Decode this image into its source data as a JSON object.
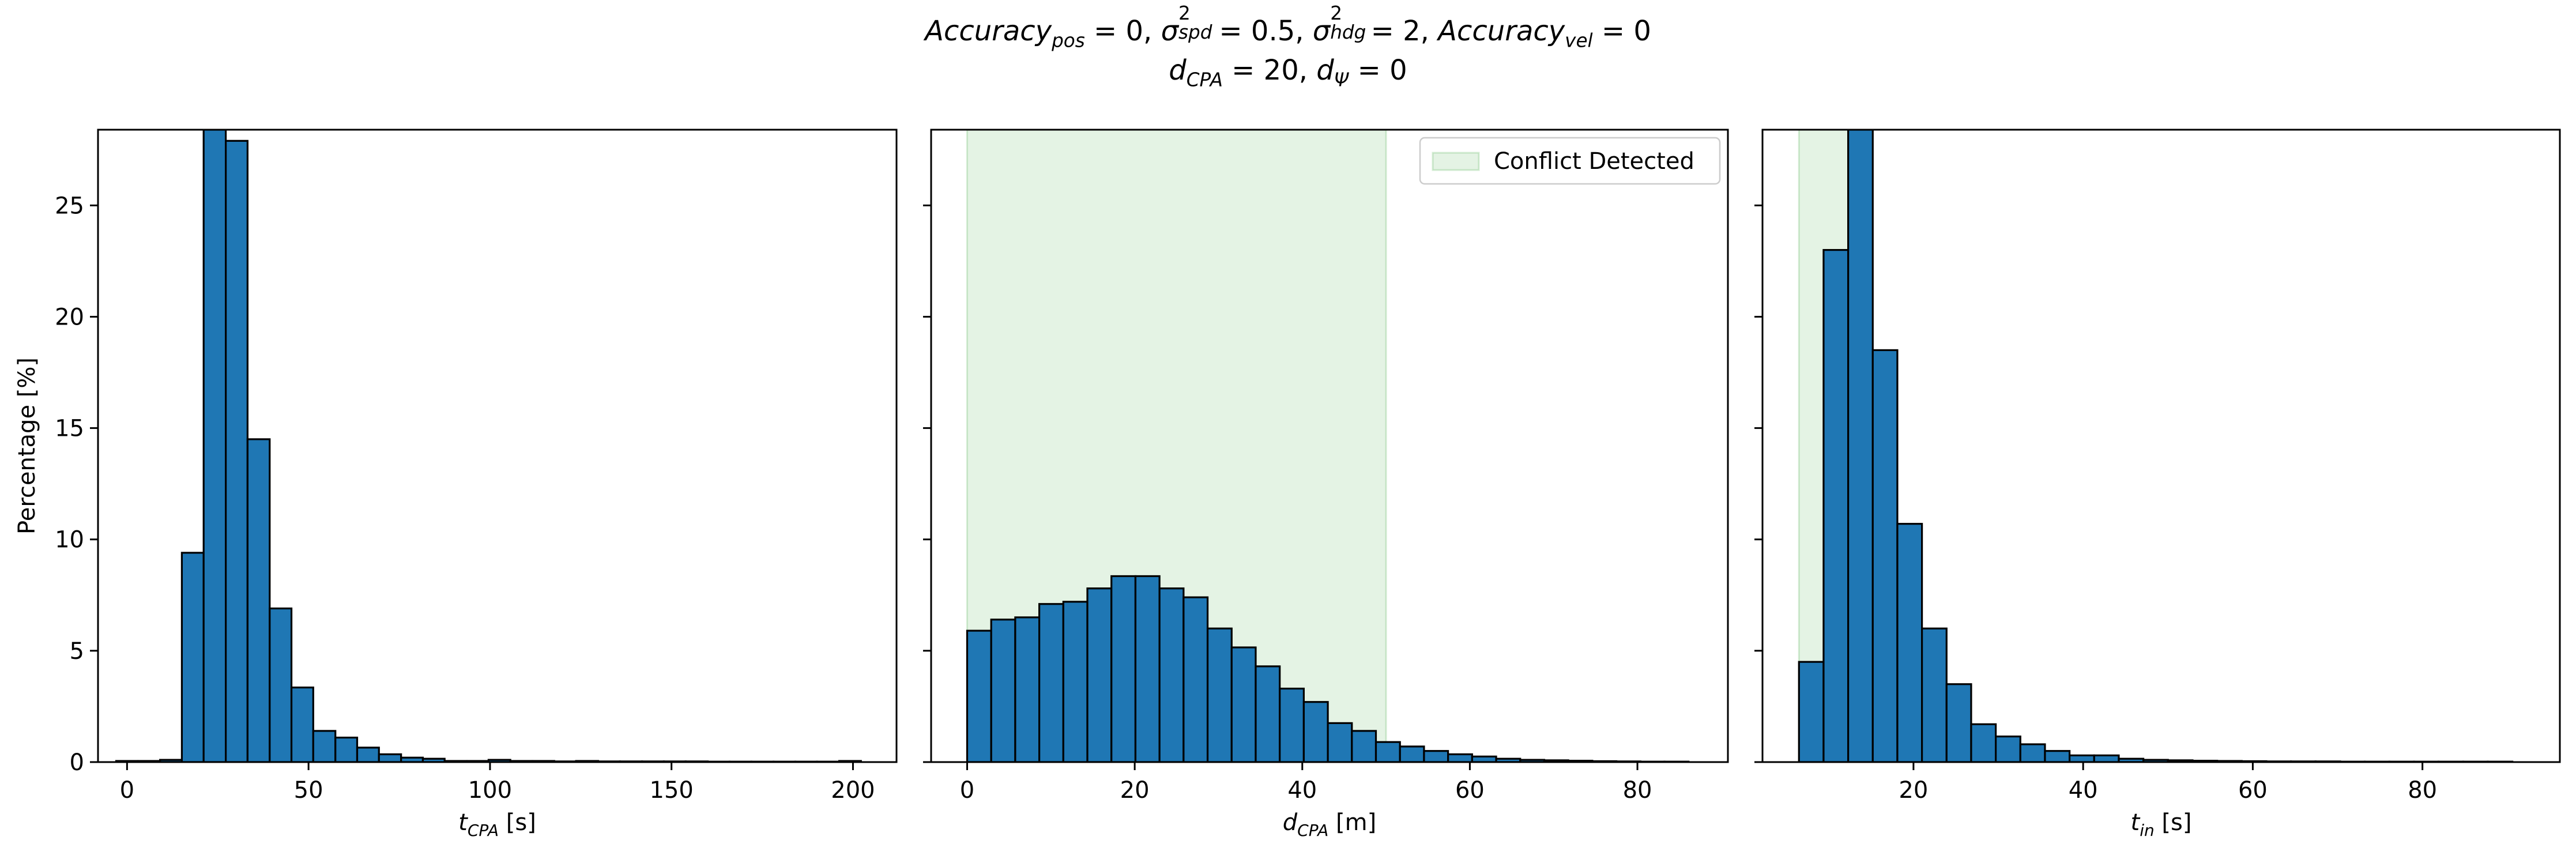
{
  "title": {
    "line1": [
      {
        "t": "Accuracy",
        "i": true
      },
      {
        "sub": "pos"
      },
      {
        "t": " = 0, "
      },
      {
        "t": "σ",
        "i": true
      },
      {
        "supsub": [
          "2",
          "spd"
        ]
      },
      {
        "t": " = 0.5, "
      },
      {
        "t": "σ",
        "i": true
      },
      {
        "supsub": [
          "2",
          "hdg"
        ]
      },
      {
        "t": " = 2, "
      },
      {
        "t": "Accuracy",
        "i": true
      },
      {
        "sub": "vel"
      },
      {
        "t": " = 0"
      }
    ],
    "line2": [
      {
        "t": "d",
        "i": true
      },
      {
        "sub": "CPA"
      },
      {
        "t": " = 20, "
      },
      {
        "t": "d",
        "i": true
      },
      {
        "sub": "Ψ"
      },
      {
        "t": " = 0"
      }
    ]
  },
  "colors": {
    "bar_fill": "#1f77b4",
    "bar_edge": "#000000",
    "conflict_fill": "#2ca02c",
    "conflict_edge": "#2ca02c"
  },
  "chart_data": [
    {
      "type": "bar",
      "xlabel": {
        "main": "t",
        "sub": "CPA",
        "unit": " [s]"
      },
      "ylabel": "Percentage [%]",
      "xlim": [
        -8,
        212
      ],
      "ylim": [
        0,
        28.4
      ],
      "xticks": [
        0,
        50,
        100,
        150,
        200
      ],
      "yticks": [
        0,
        5,
        10,
        15,
        20,
        25
      ],
      "ytick_labels_shown": true,
      "bins": {
        "edges": [
          -3.0,
          3.0,
          9.1,
          15.1,
          21.1,
          27.2,
          33.2,
          39.3,
          45.3,
          51.3,
          57.4,
          63.4,
          69.4,
          75.5,
          81.5,
          87.5,
          93.6,
          99.6,
          105.6,
          111.7,
          117.7,
          123.7,
          129.8,
          135.8,
          141.9,
          147.9,
          153.9,
          160.0,
          166.0,
          172.0,
          178.1,
          184.1,
          190.1,
          196.2,
          202.2
        ],
        "values": [
          0.05,
          0.05,
          0.1,
          9.4,
          28.4,
          27.9,
          14.5,
          6.9,
          3.35,
          1.4,
          1.1,
          0.65,
          0.35,
          0.2,
          0.15,
          0.05,
          0.05,
          0.1,
          0.05,
          0.05,
          0.03,
          0.05,
          0.03,
          0.03,
          0.03,
          0.03,
          0.03,
          0.02,
          0.02,
          0.02,
          0.02,
          0.02,
          0.02,
          0.05
        ]
      }
    },
    {
      "type": "bar",
      "xlabel": {
        "main": "d",
        "sub": "CPA",
        "unit": " [m]"
      },
      "ylabel": "",
      "xlim": [
        -4.3,
        90.8
      ],
      "ylim": [
        0,
        28.4
      ],
      "xticks": [
        0,
        20,
        40,
        60,
        80
      ],
      "yticks": [
        0,
        5,
        10,
        15,
        20,
        25
      ],
      "ytick_labels_shown": false,
      "shaded_span": {
        "from": 0,
        "to": 50,
        "label": "Conflict Detected"
      },
      "legend": {
        "placement": "upper right",
        "entries": [
          "Conflict Detected"
        ]
      },
      "bins": {
        "edges": [
          0.0,
          2.87,
          5.74,
          8.61,
          11.48,
          14.35,
          17.22,
          20.09,
          22.96,
          25.83,
          28.7,
          31.57,
          34.44,
          37.31,
          40.18,
          43.05,
          45.92,
          48.79,
          51.66,
          54.53,
          57.4,
          60.27,
          63.14,
          66.01,
          68.88,
          71.75,
          74.62,
          77.49,
          80.36,
          83.23,
          86.1
        ],
        "values": [
          5.9,
          6.4,
          6.5,
          7.1,
          7.2,
          7.8,
          8.35,
          8.35,
          7.8,
          7.4,
          6.0,
          5.15,
          4.3,
          3.3,
          2.7,
          1.75,
          1.4,
          0.9,
          0.7,
          0.5,
          0.35,
          0.25,
          0.15,
          0.1,
          0.08,
          0.06,
          0.04,
          0.03,
          0.02,
          0.02
        ]
      }
    },
    {
      "type": "bar",
      "xlabel": {
        "main": "t",
        "sub": "in",
        "unit": " [s]"
      },
      "ylabel": "",
      "xlim": [
        2.2,
        96.2
      ],
      "ylim": [
        0,
        28.4
      ],
      "xticks": [
        20,
        40,
        60,
        80
      ],
      "yticks": [
        0,
        5,
        10,
        15,
        20,
        25
      ],
      "ytick_labels_shown": false,
      "shaded_span": {
        "from": 6.5,
        "to": 12.3
      },
      "bins": {
        "edges": [
          6.5,
          9.4,
          12.3,
          15.2,
          18.1,
          21.0,
          23.9,
          26.8,
          29.7,
          32.6,
          35.5,
          38.4,
          41.3,
          44.2,
          47.1,
          50.0,
          52.9,
          55.8,
          58.7,
          61.6,
          64.5,
          67.4,
          70.3,
          73.2,
          76.1,
          79.0,
          81.9,
          84.8,
          87.7,
          90.6
        ],
        "values": [
          4.5,
          23.0,
          28.4,
          18.5,
          10.7,
          6.0,
          3.5,
          1.7,
          1.15,
          0.8,
          0.5,
          0.3,
          0.3,
          0.15,
          0.1,
          0.08,
          0.06,
          0.05,
          0.04,
          0.03,
          0.03,
          0.03,
          0.02,
          0.02,
          0.02,
          0.02,
          0.02,
          0.02,
          0.02
        ]
      }
    }
  ]
}
